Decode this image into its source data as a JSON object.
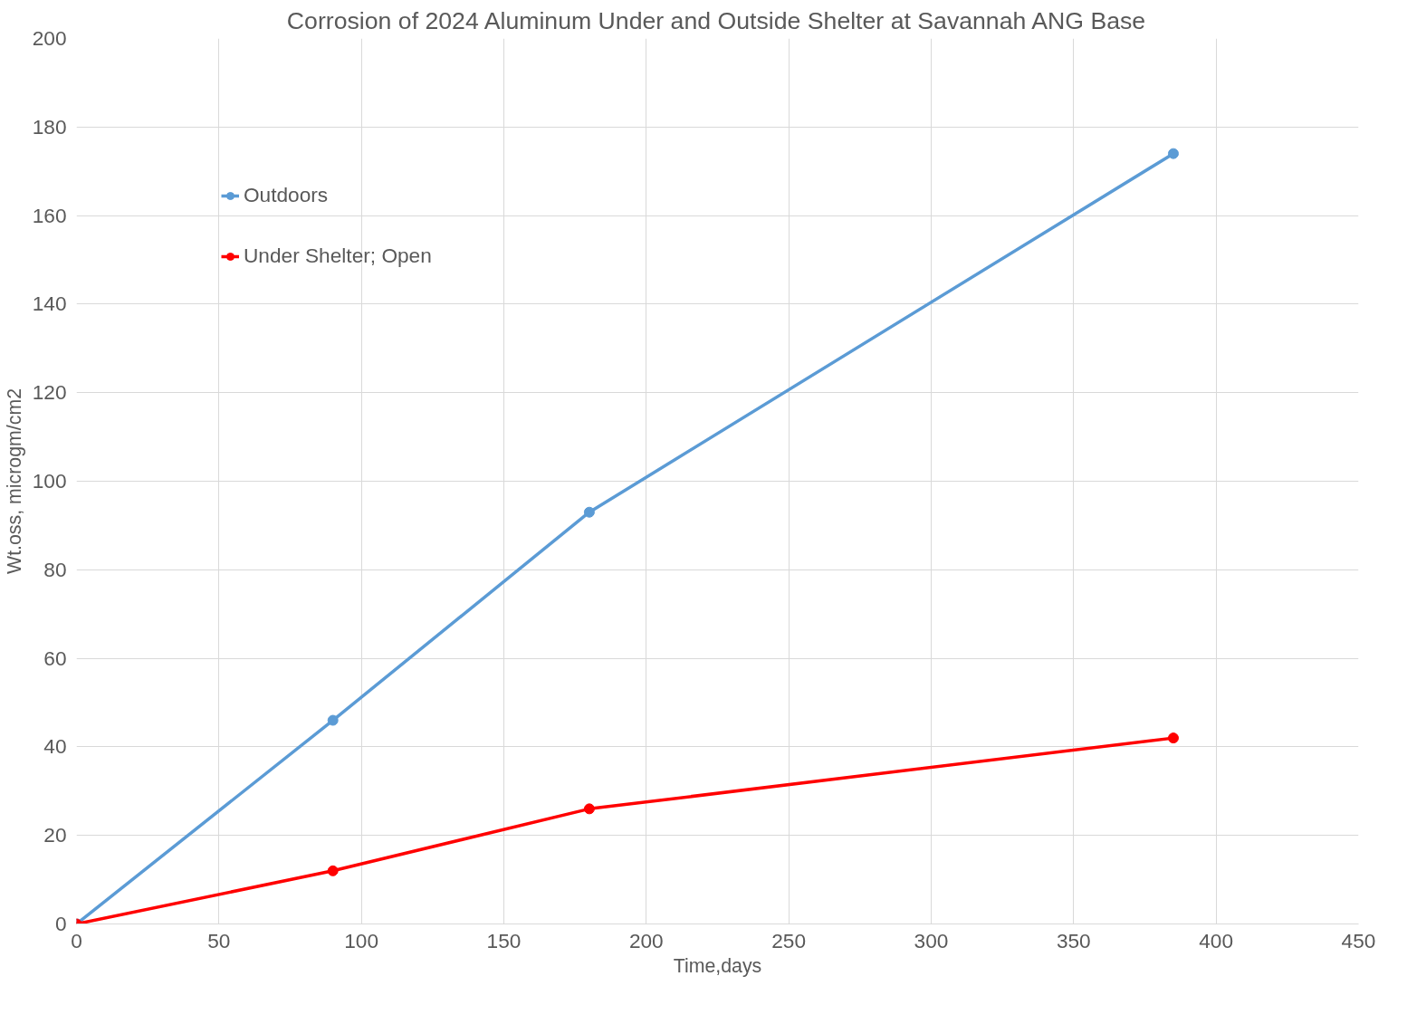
{
  "chart_data": {
    "type": "line",
    "title": "Corrosion of 2024 Aluminum Under and Outside Shelter at Savannah ANG Base",
    "xlabel": "Time,days",
    "ylabel": "Wt.oss, microgm/cm2",
    "x": [
      0,
      90,
      180,
      385
    ],
    "series": [
      {
        "name": "Outdoors",
        "color": "#5b9bd5",
        "values": [
          0,
          46,
          93,
          174
        ]
      },
      {
        "name": "Under Shelter; Open",
        "color": "#ff0000",
        "values": [
          0,
          12,
          26,
          42
        ]
      }
    ],
    "xlim": [
      0,
      450
    ],
    "xticks": [
      0,
      50,
      100,
      150,
      200,
      250,
      300,
      350,
      400,
      450
    ],
    "ylim": [
      0,
      200
    ],
    "yticks": [
      0,
      20,
      40,
      60,
      80,
      100,
      120,
      140,
      160,
      180,
      200
    ],
    "grid": true,
    "legend": "top left",
    "marker": "circle",
    "line_style": "solid"
  }
}
